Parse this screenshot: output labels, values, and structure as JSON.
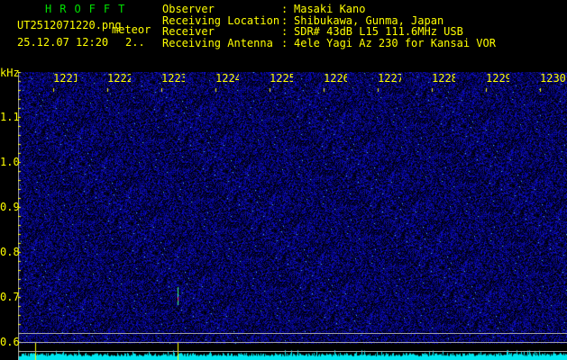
{
  "app": {
    "title": "HROFFT",
    "filename": "UT2512071220.png",
    "mode": "meteor",
    "datetime": "25.12.07 12:20",
    "extra": "2.."
  },
  "info": [
    {
      "label": "Observer",
      "value": "Masaki Kano"
    },
    {
      "label": "Receiving Location",
      "value": "Shibukawa, Gunma, Japan"
    },
    {
      "label": "Receiver",
      "value": "SDR# 43dB L15 111.6MHz USB"
    },
    {
      "label": "Receiving Antenna",
      "value": "4ele Yagi Az 230 for Kansai VOR"
    }
  ],
  "x_axis": {
    "ticks": [
      "1221",
      "1222",
      "1223",
      "1224",
      "1225",
      "1226",
      "1227",
      "1228",
      "1229",
      "1230"
    ]
  },
  "y_axis": {
    "unit": "kHz",
    "ticks": [
      "1.1",
      "1.0",
      "0.9",
      "0.8",
      "0.7",
      "0.6"
    ]
  },
  "colors": {
    "background": "#000000",
    "noise": "#1010c0",
    "spectrum": "#00ffff",
    "text": "#ffff00",
    "title": "#00e000"
  }
}
